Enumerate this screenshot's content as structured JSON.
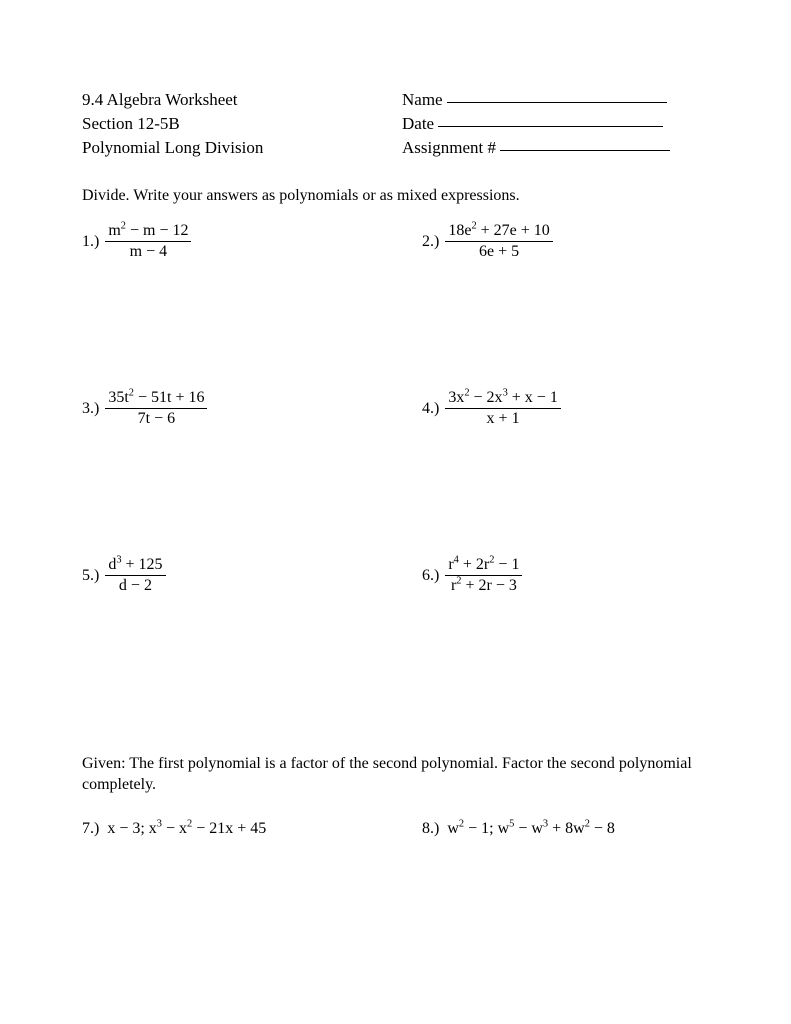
{
  "header": {
    "title": "9.4 Algebra Worksheet",
    "section": "Section 12-5B",
    "topic": "Polynomial Long Division",
    "name_label": "Name",
    "date_label": "Date",
    "assignment_label": "Assignment #",
    "text_color": "#000000",
    "background_color": "#ffffff",
    "font_family": "Times New Roman",
    "header_fontsize": 17
  },
  "part1": {
    "instructions": "Divide.  Write your answers as polynomials or as mixed expressions.",
    "problems": [
      {
        "n": "1.)",
        "num": "m<sup>2</sup> − m − 12",
        "den": "m − 4"
      },
      {
        "n": "2.)",
        "num": "18e<sup>2</sup> + 27e + 10",
        "den": "6e + 5"
      },
      {
        "n": "3.)",
        "num": "35t<sup>2</sup> − 51t + 16",
        "den": "7t − 6"
      },
      {
        "n": "4.)",
        "num": "3x<sup>2</sup> − 2x<sup>3</sup> + x − 1",
        "den": "x + 1"
      },
      {
        "n": "5.)",
        "num": "d<sup>3</sup> + 125",
        "den": "d − 2"
      },
      {
        "n": "6.)",
        "num": "r<sup>4</sup> + 2r<sup>2</sup> − 1",
        "den": "r<sup>2</sup> + 2r − 3"
      }
    ]
  },
  "part2": {
    "instructions": "Given: The first polynomial is a factor of the second polynomial.  Factor the second polynomial completely.",
    "problems": [
      {
        "n": "7.)",
        "expr": "x − 3;  x<sup>3</sup> − x<sup>2</sup> − 21x + 45"
      },
      {
        "n": "8.)",
        "expr": "w<sup>2</sup> − 1;  w<sup>5</sup> − w<sup>3</sup> + 8w<sup>2</sup> − 8"
      }
    ]
  },
  "layout": {
    "blank_line_widths": {
      "name": 220,
      "date": 225,
      "assignment": 170
    },
    "body_fontsize": 16
  }
}
